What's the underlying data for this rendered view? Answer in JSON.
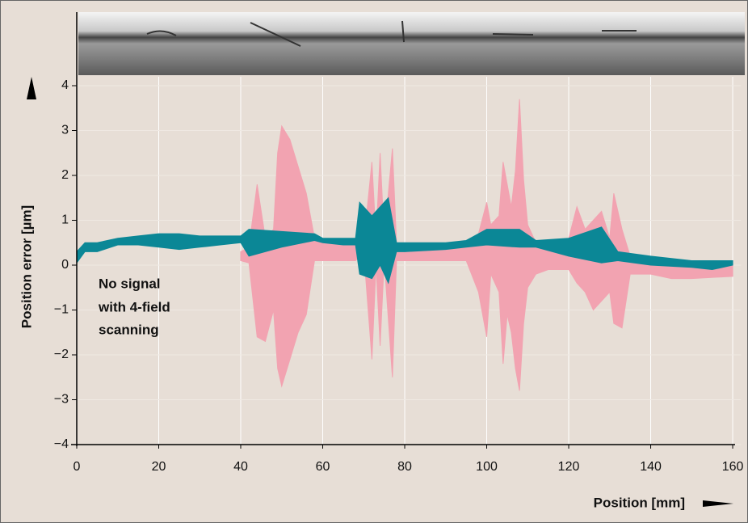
{
  "chart_data": {
    "type": "band",
    "x_label": "Position [mm]",
    "y_label": "Position error  [µm]",
    "annotation": [
      "No signal",
      "with 4-field",
      "scanning"
    ],
    "xlim": [
      0,
      162
    ],
    "ylim": [
      -4,
      4
    ],
    "xticks": [
      0,
      20,
      40,
      60,
      80,
      100,
      120,
      140,
      160
    ],
    "yticks": [
      {
        "value": -4,
        "label": "−4"
      },
      {
        "value": -3,
        "label": "−3"
      },
      {
        "value": -2,
        "label": "−2"
      },
      {
        "value": -1,
        "label": "−1"
      },
      0,
      1,
      2,
      3,
      4
    ],
    "grid": true,
    "series": [
      {
        "color": "#f2a3b1",
        "x": [
          40,
          42,
          44,
          46,
          48,
          49,
          50,
          52,
          54,
          56,
          58,
          60,
          65,
          68,
          70,
          72,
          73,
          74,
          75,
          77,
          78,
          85,
          95,
          98,
          100,
          101,
          103,
          104,
          105,
          106,
          107,
          108,
          109,
          110,
          112,
          115,
          120,
          122,
          124,
          126,
          128,
          130,
          131,
          133,
          135,
          140,
          145,
          150,
          160
        ],
        "upper": [
          0.3,
          0.4,
          1.8,
          0.6,
          0.8,
          2.5,
          3.1,
          2.8,
          2.2,
          1.6,
          0.6,
          0.5,
          0.5,
          0.5,
          0.5,
          2.3,
          0.6,
          2.5,
          0.6,
          2.6,
          0.5,
          0.45,
          0.45,
          0.7,
          1.4,
          0.9,
          1.1,
          2.3,
          1.8,
          1.3,
          2.1,
          3.7,
          1.9,
          0.9,
          0.5,
          0.4,
          0.6,
          1.3,
          0.8,
          1.0,
          1.2,
          0.6,
          1.6,
          0.8,
          0.2,
          0.1,
          0.05,
          0.0,
          0.0
        ],
        "lower": [
          0.1,
          0.05,
          -1.6,
          -1.7,
          -1.0,
          -2.3,
          -2.7,
          -2.1,
          -1.5,
          -1.1,
          0.1,
          0.1,
          0.1,
          0.1,
          0.3,
          -2.1,
          0.0,
          -1.8,
          0.1,
          -2.5,
          0.1,
          0.1,
          0.1,
          -0.6,
          -1.6,
          -0.2,
          -0.6,
          -2.2,
          -1.1,
          -1.5,
          -2.3,
          -2.8,
          -1.3,
          -0.5,
          -0.2,
          -0.1,
          -0.1,
          -0.4,
          -0.6,
          -1.0,
          -0.8,
          -0.6,
          -1.3,
          -1.4,
          -0.2,
          -0.2,
          -0.3,
          -0.3,
          -0.25
        ]
      },
      {
        "color": "#0b8796",
        "x": [
          0,
          2,
          5,
          10,
          15,
          20,
          25,
          30,
          35,
          40,
          42,
          50,
          58,
          60,
          65,
          68,
          69,
          72,
          74,
          76,
          78,
          80,
          90,
          95,
          100,
          108,
          112,
          120,
          128,
          132,
          140,
          150,
          155,
          160
        ],
        "upper": [
          0.3,
          0.5,
          0.5,
          0.6,
          0.65,
          0.7,
          0.7,
          0.65,
          0.65,
          0.65,
          0.8,
          0.75,
          0.7,
          0.6,
          0.6,
          0.6,
          1.4,
          1.1,
          1.3,
          1.5,
          0.5,
          0.5,
          0.5,
          0.55,
          0.8,
          0.8,
          0.55,
          0.6,
          0.85,
          0.3,
          0.2,
          0.1,
          0.1,
          0.1
        ],
        "lower": [
          0.05,
          0.3,
          0.3,
          0.45,
          0.45,
          0.4,
          0.35,
          0.4,
          0.45,
          0.5,
          0.2,
          0.4,
          0.55,
          0.5,
          0.45,
          0.45,
          -0.2,
          -0.3,
          0.0,
          -0.4,
          0.3,
          0.3,
          0.35,
          0.4,
          0.45,
          0.4,
          0.4,
          0.2,
          0.05,
          0.1,
          0.0,
          -0.05,
          -0.1,
          0.0
        ]
      }
    ]
  }
}
